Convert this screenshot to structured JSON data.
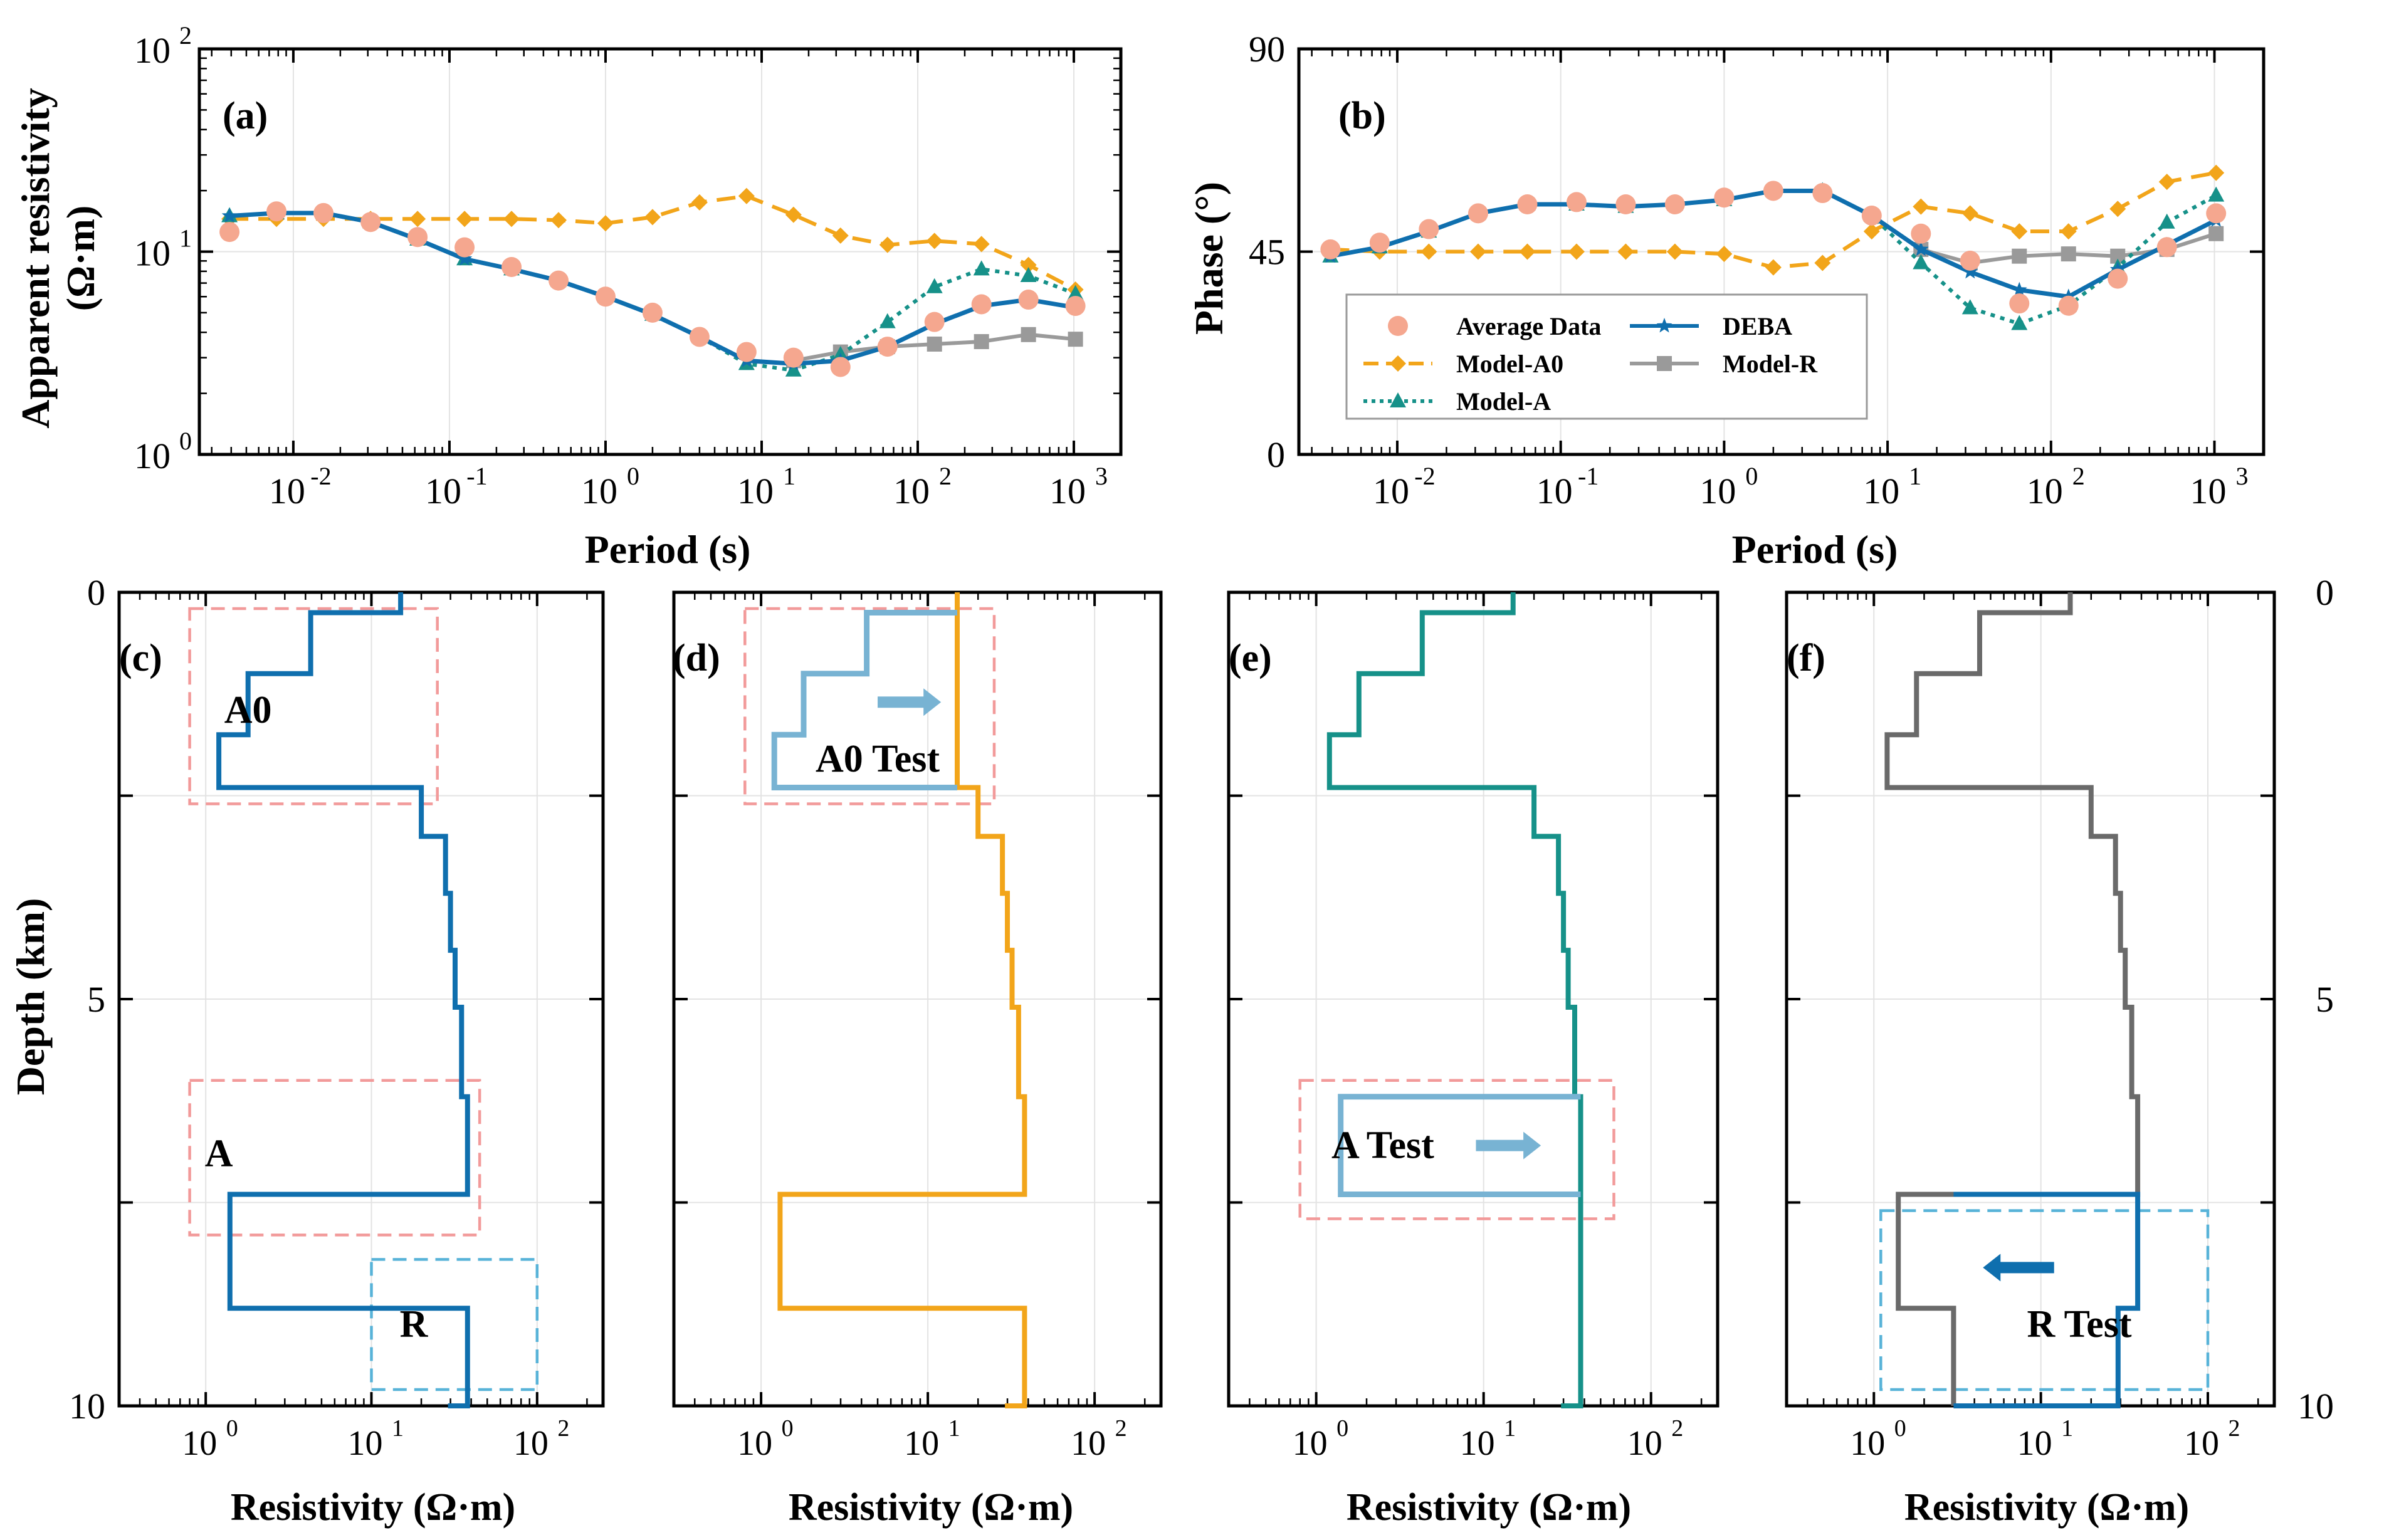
{
  "colors": {
    "deba": "#0f6fae",
    "avg": "#f5a78f",
    "a0": "#f2a51a",
    "modelA": "#169189",
    "modelR": "#9a9a9a",
    "boxRed": "#f29a9a",
    "boxBlue": "#58b3d8",
    "grayStep": "#6a6a6a",
    "testBlue": "#78b3d3"
  },
  "chart_data": [
    {
      "id": "a",
      "panel_label": "(a)",
      "type": "line",
      "title": "",
      "xlabel": "Period (s)",
      "ylabel_line1": "Apparent resistivity",
      "ylabel_line2": "(Ω·m)",
      "xscale": "log",
      "yscale": "log",
      "xlim": [
        0.0025,
        2000
      ],
      "ylim": [
        1,
        100
      ],
      "xticks": [
        {
          "base": "10",
          "exp": "-2",
          "v": 0.01
        },
        {
          "base": "10",
          "exp": "-1",
          "v": 0.1
        },
        {
          "base": "10",
          "exp": "0",
          "v": 1
        },
        {
          "base": "10",
          "exp": "1",
          "v": 10
        },
        {
          "base": "10",
          "exp": "2",
          "v": 100
        },
        {
          "base": "10",
          "exp": "3",
          "v": 1000
        }
      ],
      "yticks": [
        {
          "base": "10",
          "exp": "0",
          "v": 1
        },
        {
          "base": "10",
          "exp": "1",
          "v": 10
        },
        {
          "base": "10",
          "exp": "2",
          "v": 100
        }
      ],
      "periods": [
        0.0039,
        0.0078,
        0.0156,
        0.03125,
        0.0625,
        0.125,
        0.25,
        0.5,
        1,
        2,
        4,
        8,
        16,
        32,
        64,
        128,
        256,
        512,
        1024
      ],
      "series": [
        {
          "name": "Average Data",
          "key": "avg",
          "style": "marker",
          "values": [
            12.5,
            15.8,
            15.5,
            14.0,
            11.8,
            10.5,
            8.4,
            7.2,
            6.0,
            5.0,
            3.8,
            3.2,
            3.0,
            2.7,
            3.4,
            4.5,
            5.5,
            5.8,
            5.4
          ]
        },
        {
          "name": "DEBA",
          "key": "deba",
          "style": "line-star",
          "values": [
            15.0,
            15.5,
            15.5,
            14.0,
            11.5,
            9.2,
            8.2,
            7.2,
            6.0,
            4.9,
            3.8,
            2.9,
            2.8,
            2.9,
            3.4,
            4.4,
            5.4,
            5.8,
            5.3
          ]
        },
        {
          "name": "Model-A0",
          "key": "a0",
          "style": "dash-diamond",
          "values": [
            14.5,
            14.5,
            14.5,
            14.5,
            14.5,
            14.5,
            14.5,
            14.3,
            13.8,
            14.8,
            17.5,
            18.8,
            15.2,
            12.0,
            10.8,
            11.3,
            10.9,
            8.6,
            6.5
          ]
        },
        {
          "name": "Model-A",
          "key": "modelA",
          "style": "dot-triangle",
          "values": [
            15.0,
            15.5,
            15.5,
            14.0,
            11.5,
            9.2,
            8.2,
            7.2,
            6.0,
            4.9,
            3.8,
            2.8,
            2.6,
            3.1,
            4.5,
            6.7,
            8.2,
            7.6,
            6.2
          ]
        },
        {
          "name": "Model-R",
          "key": "modelR",
          "style": "line-square",
          "values": [
            null,
            null,
            null,
            null,
            null,
            null,
            null,
            null,
            null,
            null,
            null,
            null,
            2.9,
            3.2,
            3.4,
            3.5,
            3.6,
            3.9,
            3.7
          ]
        }
      ]
    },
    {
      "id": "b",
      "panel_label": "(b)",
      "type": "line",
      "xlabel": "Period (s)",
      "ylabel": "Phase (°)",
      "xscale": "log",
      "yscale": "linear",
      "xlim": [
        0.0025,
        2000
      ],
      "ylim": [
        0,
        90
      ],
      "xticks": [
        {
          "base": "10",
          "exp": "-2",
          "v": 0.01
        },
        {
          "base": "10",
          "exp": "-1",
          "v": 0.1
        },
        {
          "base": "10",
          "exp": "0",
          "v": 1
        },
        {
          "base": "10",
          "exp": "1",
          "v": 10
        },
        {
          "base": "10",
          "exp": "2",
          "v": 100
        },
        {
          "base": "10",
          "exp": "3",
          "v": 1000
        }
      ],
      "yticks": [
        {
          "label": "0",
          "v": 0
        },
        {
          "label": "45",
          "v": 45
        },
        {
          "label": "90",
          "v": 90
        }
      ],
      "periods": [
        0.0039,
        0.0078,
        0.0156,
        0.03125,
        0.0625,
        0.125,
        0.25,
        0.5,
        1,
        2,
        4,
        8,
        16,
        32,
        64,
        128,
        256,
        512,
        1024
      ],
      "series": [
        {
          "name": "Average Data",
          "key": "avg",
          "style": "marker",
          "values": [
            45.5,
            47.0,
            50.0,
            53.5,
            55.5,
            56.0,
            55.5,
            55.5,
            57.0,
            58.5,
            58.0,
            53.0,
            49.0,
            43.0,
            33.5,
            33.0,
            39.0,
            46.0,
            53.5
          ]
        },
        {
          "name": "DEBA",
          "key": "deba",
          "style": "line-star",
          "values": [
            44.0,
            46.0,
            49.5,
            53.5,
            55.5,
            55.5,
            55.0,
            55.5,
            56.5,
            58.5,
            58.5,
            53.0,
            45.5,
            40.5,
            36.5,
            35.0,
            41.0,
            46.5,
            52.0
          ]
        },
        {
          "name": "Model-A0",
          "key": "a0",
          "style": "dash-diamond",
          "values": [
            45.5,
            45.0,
            45.0,
            45.0,
            45.0,
            45.0,
            45.0,
            45.0,
            44.5,
            41.5,
            42.5,
            49.5,
            55.0,
            53.5,
            49.5,
            49.5,
            54.5,
            60.5,
            62.5
          ]
        },
        {
          "name": "Model-A",
          "key": "modelA",
          "style": "dot-triangle",
          "values": [
            44.0,
            46.0,
            49.5,
            53.5,
            55.5,
            55.5,
            55.0,
            55.5,
            56.5,
            58.5,
            58.5,
            53.0,
            42.5,
            32.5,
            29.0,
            33.0,
            41.5,
            51.5,
            57.5
          ]
        },
        {
          "name": "Model-R",
          "key": "modelR",
          "style": "line-square",
          "values": [
            null,
            null,
            null,
            null,
            null,
            null,
            null,
            null,
            null,
            null,
            null,
            null,
            45.5,
            42.5,
            44.0,
            44.5,
            44.0,
            45.5,
            49.0
          ]
        }
      ],
      "legend": [
        {
          "label": "Average Data",
          "key": "avg"
        },
        {
          "label": "DEBA",
          "key": "deba"
        },
        {
          "label": "Model-A0",
          "key": "a0"
        },
        {
          "label": "Model-R",
          "key": "modelR"
        },
        {
          "label": "Model-A",
          "key": "modelA"
        }
      ]
    },
    {
      "id": "c",
      "panel_label": "(c)",
      "type": "line",
      "xlabel": "Resistivity (Ω·m)",
      "ylabel": "Depth (km)",
      "xscale": "log",
      "xlim": [
        0.3,
        250
      ],
      "ylim": [
        0,
        10
      ],
      "xticks": [
        {
          "base": "10",
          "exp": "0",
          "v": 1
        },
        {
          "base": "10",
          "exp": "1",
          "v": 10
        },
        {
          "base": "10",
          "exp": "2",
          "v": 100
        }
      ],
      "yticks": [
        {
          "label": "0",
          "v": 0
        },
        {
          "label": "5",
          "v": 5
        },
        {
          "label": "10",
          "v": 10
        }
      ],
      "profiles": [
        {
          "key": "deba",
          "resistivity": [
            15,
            4.3,
            1.8,
            1.2,
            20,
            28,
            30,
            32,
            35,
            38,
            1.4,
            38,
            29
          ],
          "depth_bounds": [
            0,
            0.25,
            1.0,
            1.75,
            2.4,
            3.0,
            3.7,
            4.4,
            5.1,
            6.2,
            7.4,
            8.8,
            10
          ]
        }
      ],
      "boxes": [
        {
          "label": "A0",
          "key": "boxRed",
          "x": [
            0.8,
            25
          ],
          "y": [
            0.2,
            2.6
          ]
        },
        {
          "label": "A",
          "key": "boxRed",
          "x": [
            0.8,
            45
          ],
          "y": [
            6.0,
            7.9
          ]
        },
        {
          "label": "R",
          "key": "boxBlue",
          "x": [
            10,
            100
          ],
          "y": [
            8.2,
            9.8
          ]
        }
      ]
    },
    {
      "id": "d",
      "panel_label": "(d)",
      "type": "line",
      "xlabel": "Resistivity (Ω·m)",
      "xscale": "log",
      "xlim": [
        0.3,
        250
      ],
      "ylim": [
        0,
        10
      ],
      "xticks": [
        {
          "base": "10",
          "exp": "0",
          "v": 1
        },
        {
          "base": "10",
          "exp": "1",
          "v": 10
        },
        {
          "base": "10",
          "exp": "2",
          "v": 100
        }
      ],
      "profiles": [
        {
          "key": "a0",
          "resistivity": [
            15,
            15,
            15,
            15,
            20,
            28,
            30,
            32,
            35,
            38,
            1.3,
            38,
            29
          ],
          "depth_bounds": [
            0,
            0.25,
            1.0,
            1.75,
            2.4,
            3.0,
            3.7,
            4.4,
            5.1,
            6.2,
            7.4,
            8.8,
            10
          ]
        },
        {
          "key": "testBlue",
          "resistivity": [
            4.3,
            1.8,
            1.2
          ],
          "depth_bounds": [
            0.25,
            1.0,
            1.75,
            2.4
          ],
          "join_to": 15
        }
      ],
      "boxes": [
        {
          "label": "A0 Test",
          "key": "boxRed",
          "x": [
            0.8,
            25
          ],
          "y": [
            0.2,
            2.6
          ]
        }
      ],
      "arrow": {
        "dir": "right",
        "x": [
          5,
          12
        ],
        "y": 1.35
      }
    },
    {
      "id": "e",
      "panel_label": "(e)",
      "type": "line",
      "xlabel": "Resistivity (Ω·m)",
      "xscale": "log",
      "xlim": [
        0.3,
        250
      ],
      "ylim": [
        0,
        10
      ],
      "xticks": [
        {
          "base": "10",
          "exp": "0",
          "v": 1
        },
        {
          "base": "10",
          "exp": "1",
          "v": 10
        },
        {
          "base": "10",
          "exp": "2",
          "v": 100
        }
      ],
      "profiles": [
        {
          "key": "modelA",
          "resistivity": [
            15,
            4.3,
            1.8,
            1.2,
            20,
            28,
            30,
            32,
            35,
            38,
            38,
            38,
            29
          ],
          "depth_bounds": [
            0,
            0.25,
            1.0,
            1.75,
            2.4,
            3.0,
            3.7,
            4.4,
            5.1,
            6.2,
            7.4,
            8.8,
            10
          ]
        },
        {
          "key": "testBlue",
          "resistivity": [
            1.4
          ],
          "depth_bounds": [
            6.2,
            7.4
          ],
          "join_to": 38
        }
      ],
      "boxes": [
        {
          "label": "A Test",
          "key": "boxRed",
          "x": [
            0.8,
            60
          ],
          "y": [
            6.0,
            7.7
          ]
        }
      ],
      "arrow": {
        "dir": "right",
        "x": [
          9,
          22
        ],
        "y": 6.8
      }
    },
    {
      "id": "f",
      "panel_label": "(f)",
      "type": "line",
      "xlabel": "Resistivity (Ω·m)",
      "ylabel": "",
      "xscale": "log",
      "xlim": [
        0.3,
        250
      ],
      "ylim": [
        0,
        10
      ],
      "xticks": [
        {
          "base": "10",
          "exp": "0",
          "v": 1
        },
        {
          "base": "10",
          "exp": "1",
          "v": 10
        },
        {
          "base": "10",
          "exp": "2",
          "v": 100
        }
      ],
      "yticks": [
        {
          "label": "0",
          "v": 0
        },
        {
          "label": "5",
          "v": 5
        },
        {
          "label": "10",
          "v": 10
        }
      ],
      "profiles": [
        {
          "key": "grayStep",
          "resistivity": [
            15,
            4.3,
            1.8,
            1.2,
            20,
            28,
            30,
            32,
            35,
            38,
            1.4,
            3,
            3
          ],
          "depth_bounds": [
            0,
            0.25,
            1.0,
            1.75,
            2.4,
            3.0,
            3.7,
            4.4,
            5.1,
            6.2,
            7.4,
            8.8,
            10
          ]
        },
        {
          "key": "deba",
          "resistivity": [
            38,
            29
          ],
          "depth_bounds": [
            7.4,
            8.8,
            10
          ],
          "join_to": 3
        }
      ],
      "boxes": [
        {
          "label": "R Test",
          "key": "boxBlue",
          "x": [
            1.1,
            100
          ],
          "y": [
            7.6,
            9.8
          ]
        }
      ],
      "arrow": {
        "dir": "left",
        "x": [
          4.5,
          12
        ],
        "y": 8.3
      }
    }
  ]
}
